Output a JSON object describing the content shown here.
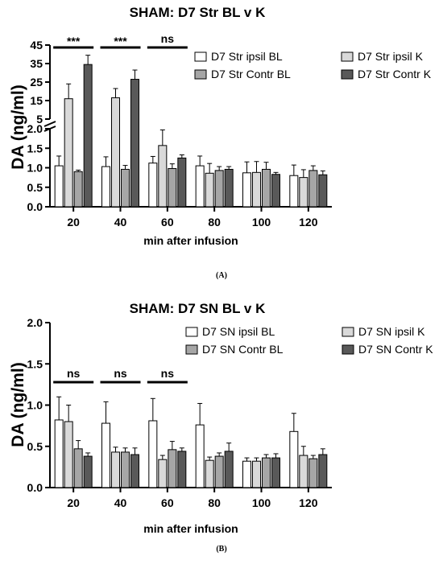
{
  "chart_data": [
    {
      "type": "bar",
      "panel_label": "(A)",
      "title": "SHAM: D7 Str BL v K",
      "xlabel": "min after infusion",
      "ylabel": "DA (ng/ml)",
      "categories": [
        "20",
        "40",
        "60",
        "80",
        "100",
        "120"
      ],
      "y_axis_broken": true,
      "ylim_lower": [
        0,
        2.0
      ],
      "yticks_lower": [
        "0.0",
        "0.5",
        "1.0",
        "1.5",
        "2.0"
      ],
      "ylim_upper": [
        5,
        45
      ],
      "yticks_upper": [
        "5",
        "15",
        "25",
        "35",
        "45"
      ],
      "series": [
        {
          "name": "D7 Str ipsil BL",
          "color": "#ffffff",
          "values": [
            1.05,
            1.03,
            1.12,
            1.05,
            0.87,
            0.8
          ],
          "errors": [
            0.25,
            0.25,
            0.17,
            0.25,
            0.28,
            0.27
          ]
        },
        {
          "name": "D7 Str ipsil K",
          "color": "#d9d9d9",
          "values": [
            16,
            16.5,
            1.57,
            0.86,
            0.88,
            0.75
          ],
          "errors": [
            8,
            5,
            0.4,
            0.25,
            0.28,
            0.2
          ]
        },
        {
          "name": "D7 Str Contr BL",
          "color": "#a6a6a6",
          "values": [
            0.9,
            0.96,
            0.98,
            0.93,
            0.96,
            0.93
          ],
          "errors": [
            0.04,
            0.1,
            0.12,
            0.1,
            0.18,
            0.12
          ]
        },
        {
          "name": "D7 Str Contr K",
          "color": "#595959",
          "values": [
            34.5,
            26.5,
            1.25,
            0.96,
            0.83,
            0.82
          ],
          "errors": [
            5,
            5,
            0.08,
            0.07,
            0.05,
            0.1
          ]
        }
      ],
      "significance": [
        "***",
        "***",
        "ns"
      ],
      "legend_position": "top-right"
    },
    {
      "type": "bar",
      "panel_label": "(B)",
      "title": "SHAM: D7 SN BL v K",
      "xlabel": "min after infusion",
      "ylabel": "DA (ng/ml)",
      "categories": [
        "20",
        "40",
        "60",
        "80",
        "100",
        "120"
      ],
      "ylim": [
        0,
        2.0
      ],
      "yticks": [
        "0.0",
        "0.5",
        "1.0",
        "1.5",
        "2.0"
      ],
      "series": [
        {
          "name": "D7 SN ipsil BL",
          "color": "#ffffff",
          "values": [
            0.82,
            0.78,
            0.81,
            0.76,
            0.32,
            0.68
          ],
          "errors": [
            0.28,
            0.26,
            0.27,
            0.26,
            0.04,
            0.22
          ]
        },
        {
          "name": "D7 SN ipsil K",
          "color": "#d9d9d9",
          "values": [
            0.8,
            0.43,
            0.34,
            0.33,
            0.32,
            0.39
          ],
          "errors": [
            0.2,
            0.06,
            0.05,
            0.04,
            0.04,
            0.11
          ]
        },
        {
          "name": "D7 SN Contr BL",
          "color": "#a6a6a6",
          "values": [
            0.47,
            0.43,
            0.46,
            0.38,
            0.36,
            0.35
          ],
          "errors": [
            0.1,
            0.05,
            0.1,
            0.04,
            0.04,
            0.04
          ]
        },
        {
          "name": "D7 SN Contr K",
          "color": "#595959",
          "values": [
            0.38,
            0.4,
            0.44,
            0.44,
            0.36,
            0.4
          ],
          "errors": [
            0.04,
            0.08,
            0.04,
            0.1,
            0.05,
            0.07
          ]
        }
      ],
      "significance": [
        "ns",
        "ns",
        "ns"
      ],
      "legend_position": "top-right"
    }
  ]
}
